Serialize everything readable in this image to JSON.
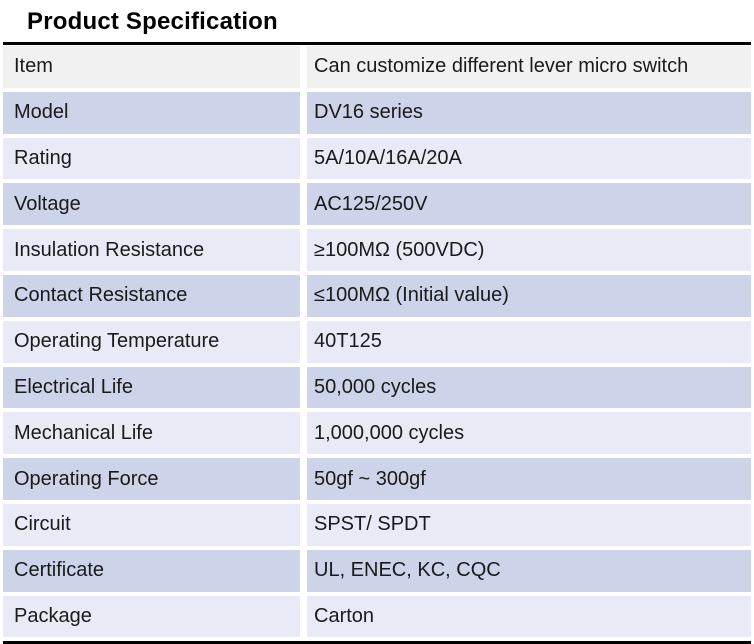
{
  "page_title": "Product Specification",
  "table": {
    "rows": [
      {
        "label": "Item",
        "value": "Can customize different lever micro switch"
      },
      {
        "label": "Model",
        "value": "DV16 series"
      },
      {
        "label": "Rating",
        "value": "5A/10A/16A/20A"
      },
      {
        "label": "Voltage",
        "value": "AC125/250V"
      },
      {
        "label": "Insulation Resistance",
        "value": "≥100MΩ (500VDC)"
      },
      {
        "label": "Contact Resistance",
        "value": "≤100MΩ (Initial value)"
      },
      {
        "label": "Operating Temperature",
        "value": "40T125"
      },
      {
        "label": "Electrical Life",
        "value": "50,000 cycles"
      },
      {
        "label": "Mechanical Life",
        "value": "1,000,000 cycles"
      },
      {
        "label": "Operating Force",
        "value": "50gf ~ 300gf"
      },
      {
        "label": "Circuit",
        "value": "SPST/ SPDT"
      },
      {
        "label": "Certificate",
        "value": "UL, ENEC, KC, CQC"
      },
      {
        "label": "Package",
        "value": "Carton"
      }
    ]
  },
  "colors": {
    "header_row_bg": "#f1f1f1",
    "band_strong_bg": "#cdd3e8",
    "band_soft_bg": "#e8ebf6",
    "table_border": "#000000",
    "text": "#1a1a1a"
  }
}
